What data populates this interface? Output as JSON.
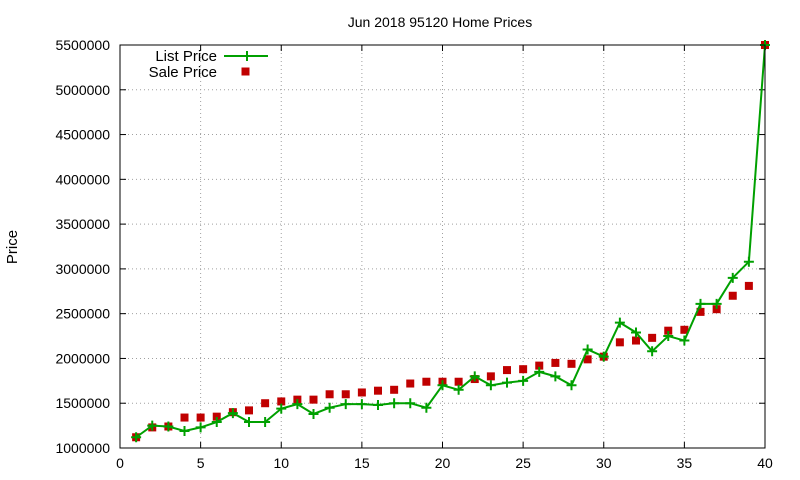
{
  "chart_data": {
    "type": "line",
    "title": "Jun 2018 95120 Home Prices",
    "xlabel": "",
    "ylabel": "Price",
    "xlim": [
      0,
      40
    ],
    "ylim": [
      1000000,
      5500000
    ],
    "xticks": [
      "0",
      "5",
      "10",
      "15",
      "20",
      "25",
      "30",
      "35",
      "40"
    ],
    "yticks": [
      "1000000",
      "1500000",
      "2000000",
      "2500000",
      "3000000",
      "3500000",
      "4000000",
      "4500000",
      "5000000",
      "5500000"
    ],
    "grid": true,
    "legend_position": "top-left",
    "series": [
      {
        "name": "List Price",
        "style": "line-with-plus-markers",
        "color": "#00a000",
        "x": [
          1,
          2,
          3,
          4,
          5,
          6,
          7,
          8,
          9,
          10,
          11,
          12,
          13,
          14,
          15,
          16,
          17,
          18,
          19,
          20,
          21,
          22,
          23,
          24,
          25,
          26,
          27,
          28,
          29,
          30,
          31,
          32,
          33,
          34,
          35,
          36,
          37,
          38,
          39,
          40
        ],
        "y": [
          1120000,
          1250000,
          1240000,
          1190000,
          1230000,
          1290000,
          1390000,
          1290000,
          1290000,
          1440000,
          1490000,
          1380000,
          1450000,
          1490000,
          1490000,
          1480000,
          1500000,
          1500000,
          1450000,
          1700000,
          1650000,
          1800000,
          1700000,
          1730000,
          1750000,
          1850000,
          1800000,
          1700000,
          2100000,
          2020000,
          2400000,
          2290000,
          2080000,
          2250000,
          2200000,
          2610000,
          2610000,
          2900000,
          3080000,
          5500000
        ]
      },
      {
        "name": "Sale Price",
        "style": "square-markers",
        "color": "#c00000",
        "x": [
          1,
          2,
          3,
          4,
          5,
          6,
          7,
          8,
          9,
          10,
          11,
          12,
          13,
          14,
          15,
          16,
          17,
          18,
          19,
          20,
          21,
          22,
          23,
          24,
          25,
          26,
          27,
          28,
          29,
          30,
          31,
          32,
          33,
          34,
          35,
          36,
          37,
          38,
          39,
          40
        ],
        "y": [
          1120000,
          1230000,
          1240000,
          1340000,
          1340000,
          1350000,
          1400000,
          1420000,
          1500000,
          1520000,
          1540000,
          1540000,
          1600000,
          1600000,
          1620000,
          1640000,
          1650000,
          1720000,
          1740000,
          1740000,
          1740000,
          1770000,
          1800000,
          1870000,
          1880000,
          1920000,
          1950000,
          1940000,
          1990000,
          2020000,
          2180000,
          2200000,
          2230000,
          2310000,
          2320000,
          2520000,
          2550000,
          2700000,
          2810000,
          5500000
        ]
      }
    ]
  }
}
